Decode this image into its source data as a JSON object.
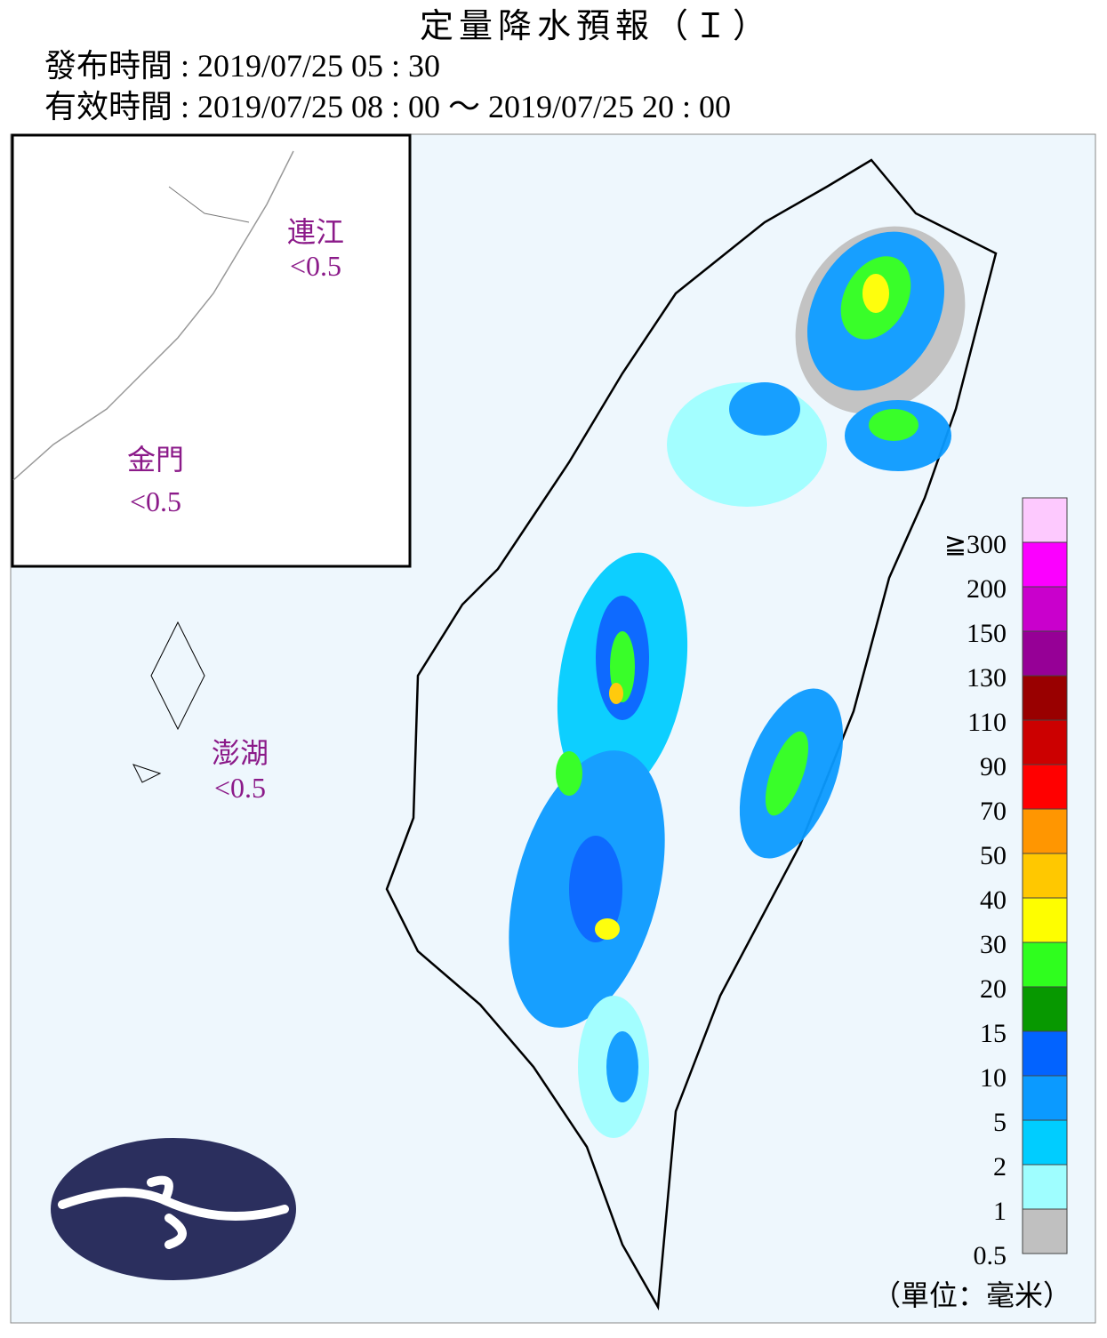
{
  "header": {
    "title": "定量降水預報（Ｉ）",
    "issued": "發布時間 : 2019/07/25 05 : 30",
    "valid": "有效時間 : 2019/07/25 08 : 00 ～ 2019/07/25 20 : 00"
  },
  "islands": [
    {
      "name": "連江",
      "value": "<0.5"
    },
    {
      "name": "金門",
      "value": "<0.5"
    },
    {
      "name": "澎湖",
      "value": "<0.5"
    }
  ],
  "legend": {
    "labels": [
      "0.5",
      "1",
      "2",
      "5",
      "10",
      "15",
      "20",
      "30",
      "40",
      "50",
      "70",
      "90",
      "110",
      "130",
      "150",
      "200",
      "≧300"
    ],
    "colors": [
      "#c0c0c0",
      "#9ffeff",
      "#00cdff",
      "#0b9aff",
      "#0263ff",
      "#079800",
      "#2ffe1e",
      "#fefe00",
      "#ffc800",
      "#ff9601",
      "#ff0000",
      "#cc0000",
      "#990000",
      "#960096",
      "#c900cc",
      "#fb00ff",
      "#fdc9fe"
    ],
    "unit": "（單位：毫米）"
  }
}
